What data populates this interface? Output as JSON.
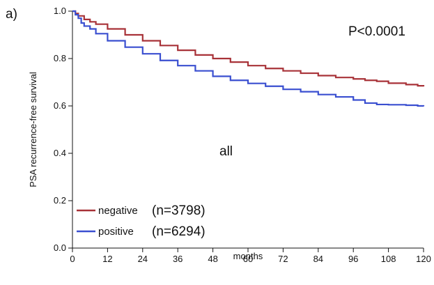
{
  "panel_label": "a)",
  "chart_data": {
    "type": "line",
    "title": "",
    "xlabel": "months",
    "ylabel": "PSA recurrence-free survival",
    "xlim": [
      0,
      120
    ],
    "ylim": [
      0.0,
      1.0
    ],
    "x_ticks": [
      0,
      12,
      24,
      36,
      48,
      60,
      72,
      84,
      96,
      108,
      120
    ],
    "y_ticks": [
      "0.0",
      "0.2",
      "0.4",
      "0.6",
      "0.8",
      "1.0"
    ],
    "grid": false,
    "legend_position": "bottom-left",
    "annotations": {
      "p_value": "P<0.0001",
      "subset": "all"
    },
    "series": [
      {
        "name": "negative",
        "n_label": "(n=3798)",
        "color": "#a83238",
        "x": [
          0,
          1,
          2,
          4,
          6,
          8,
          12,
          18,
          24,
          30,
          36,
          42,
          48,
          54,
          60,
          66,
          72,
          78,
          84,
          90,
          96,
          100,
          104,
          108,
          114,
          118,
          120
        ],
        "y": [
          1.0,
          0.99,
          0.98,
          0.965,
          0.955,
          0.945,
          0.925,
          0.9,
          0.875,
          0.855,
          0.835,
          0.815,
          0.8,
          0.785,
          0.77,
          0.758,
          0.748,
          0.738,
          0.728,
          0.72,
          0.714,
          0.708,
          0.704,
          0.696,
          0.69,
          0.685,
          0.682
        ]
      },
      {
        "name": "positive",
        "n_label": "(n=6294)",
        "color": "#3a4fd0",
        "x": [
          0,
          1,
          2,
          3,
          4,
          6,
          8,
          12,
          18,
          24,
          30,
          36,
          42,
          48,
          54,
          60,
          66,
          72,
          78,
          84,
          90,
          96,
          100,
          104,
          108,
          114,
          118,
          120
        ],
        "y": [
          1.0,
          0.985,
          0.97,
          0.95,
          0.937,
          0.925,
          0.905,
          0.875,
          0.848,
          0.82,
          0.792,
          0.77,
          0.748,
          0.725,
          0.708,
          0.695,
          0.683,
          0.67,
          0.66,
          0.648,
          0.638,
          0.625,
          0.612,
          0.606,
          0.605,
          0.603,
          0.6,
          0.598
        ]
      }
    ]
  }
}
